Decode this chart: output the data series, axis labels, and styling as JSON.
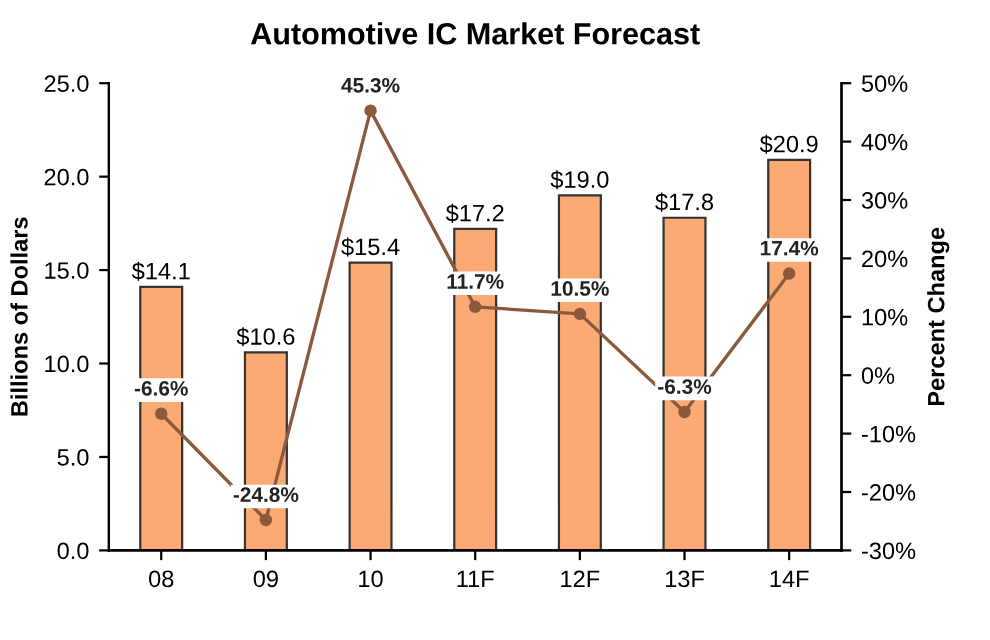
{
  "chart_data": {
    "type": "bar",
    "title": "Automotive IC Market Forecast",
    "ylabel": "Billions of Dollars",
    "y2label": "Percent Change",
    "categories": [
      "08",
      "09",
      "10",
      "11F",
      "12F",
      "13F",
      "14F"
    ],
    "series": [
      {
        "color": "#fbaa74",
        "values": [
          14.1,
          10.6,
          15.4,
          17.2,
          19.0,
          17.8,
          20.9
        ],
        "value_labels": [
          "$14.1",
          "$10.6",
          "$15.4",
          "$17.2",
          "$19.0",
          "$17.8",
          "$20.9"
        ]
      },
      {
        "type": "line",
        "axis": "y2",
        "color": "#8b5a3c",
        "marker": "circle",
        "values": [
          -6.6,
          -24.8,
          45.3,
          11.7,
          10.5,
          -6.3,
          17.4
        ],
        "value_labels": [
          "-6.6%",
          "-24.8%",
          "45.3%",
          "11.7%",
          "10.5%",
          "-6.3%",
          "17.4%"
        ]
      }
    ],
    "ylim": [
      0,
      25
    ],
    "yticks": [
      {
        "value": 0,
        "label": "0.0"
      },
      {
        "value": 5,
        "label": "5.0"
      },
      {
        "value": 10,
        "label": "10.0"
      },
      {
        "value": 15,
        "label": "15.0"
      },
      {
        "value": 20,
        "label": "20.0"
      },
      {
        "value": 25,
        "label": "25.0"
      }
    ],
    "y2lim": [
      -30,
      50
    ],
    "y2ticks": [
      {
        "value": -30,
        "label": "-30%"
      },
      {
        "value": -20,
        "label": "-20%"
      },
      {
        "value": -10,
        "label": "-10%"
      },
      {
        "value": 0,
        "label": "0%"
      },
      {
        "value": 10,
        "label": "10%"
      },
      {
        "value": 20,
        "label": "20%"
      },
      {
        "value": 30,
        "label": "30%"
      },
      {
        "value": 40,
        "label": "40%"
      },
      {
        "value": 50,
        "label": "50%"
      }
    ],
    "grid": false,
    "legend": false
  }
}
